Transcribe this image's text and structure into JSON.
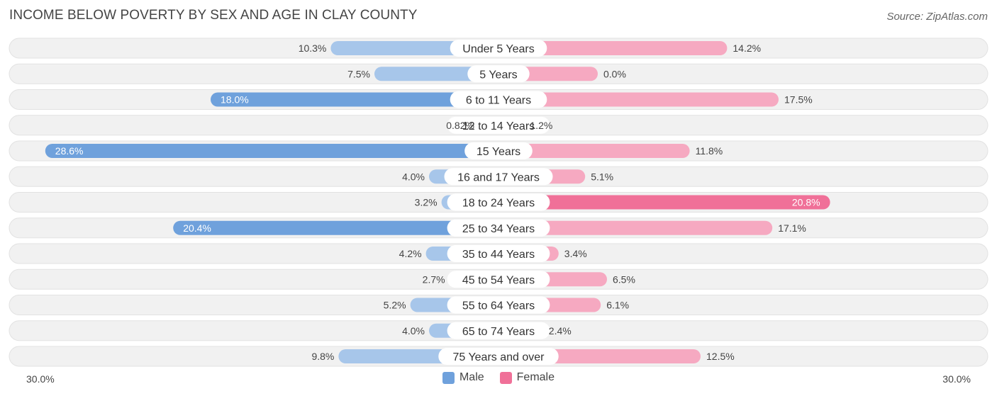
{
  "header": {
    "title": "INCOME BELOW POVERTY BY SEX AND AGE IN CLAY COUNTY",
    "source": "Source: ZipAtlas.com"
  },
  "colors": {
    "male": "#6fa1dc",
    "male_light": "#a7c6ea",
    "female": "#f07098",
    "female_light": "#f6a9c1",
    "row_bg": "#f1f1f1"
  },
  "chart_data": {
    "type": "bar",
    "orientation": "horizontal-diverging",
    "title": "INCOME BELOW POVERTY BY SEX AND AGE IN CLAY COUNTY",
    "categories": [
      "Under 5 Years",
      "5 Years",
      "6 to 11 Years",
      "12 to 14 Years",
      "15 Years",
      "16 and 17 Years",
      "18 to 24 Years",
      "25 to 34 Years",
      "35 to 44 Years",
      "45 to 54 Years",
      "55 to 64 Years",
      "65 to 74 Years",
      "75 Years and over"
    ],
    "series": [
      {
        "name": "Male",
        "values": [
          10.3,
          7.5,
          18.0,
          0.82,
          28.6,
          4.0,
          3.2,
          20.4,
          4.2,
          2.7,
          5.2,
          4.0,
          9.8
        ],
        "labels": [
          "10.3%",
          "7.5%",
          "18.0%",
          "0.82%",
          "28.6%",
          "4.0%",
          "3.2%",
          "20.4%",
          "4.2%",
          "2.7%",
          "5.2%",
          "4.0%",
          "9.8%"
        ]
      },
      {
        "name": "Female",
        "values": [
          14.2,
          0.0,
          17.5,
          1.2,
          11.8,
          5.1,
          20.8,
          17.1,
          3.4,
          6.5,
          6.1,
          2.4,
          12.5
        ],
        "labels": [
          "14.2%",
          "0.0%",
          "17.5%",
          "1.2%",
          "11.8%",
          "5.1%",
          "20.8%",
          "17.1%",
          "3.4%",
          "6.5%",
          "6.1%",
          "2.4%",
          "12.5%"
        ]
      }
    ],
    "xlim": [
      -30,
      30
    ],
    "axis_labels": {
      "left": "30.0%",
      "right": "30.0%"
    },
    "legend": {
      "placement": "bottom-center",
      "items": [
        "Male",
        "Female"
      ]
    }
  }
}
